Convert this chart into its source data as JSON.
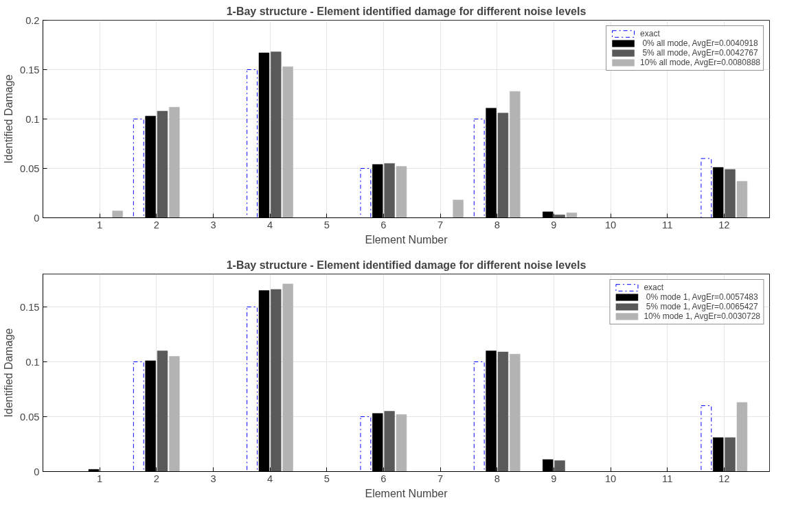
{
  "chart_data": [
    {
      "type": "bar",
      "title": "1-Bay structure - Element identified damage for different noise levels",
      "xlabel": "Element Number",
      "ylabel": "Identified Damage",
      "x": [
        1,
        2,
        3,
        4,
        5,
        6,
        7,
        8,
        9,
        10,
        11,
        12
      ],
      "xlim": [
        0,
        12.8
      ],
      "xticks": [
        1,
        2,
        3,
        4,
        5,
        6,
        7,
        8,
        9,
        10,
        11,
        12
      ],
      "ylim": [
        0,
        0.2
      ],
      "yticks": [
        0,
        0.05,
        0.1,
        0.15,
        0.2
      ],
      "grid": true,
      "legend": "top right",
      "series": [
        {
          "name": "exact",
          "color": "#0000ff",
          "line_style": "dashed",
          "values": [
            0,
            0.1,
            0,
            0.15,
            0,
            0.05,
            0,
            0.1,
            0,
            0,
            0,
            0.06
          ]
        },
        {
          "name": " 0% all mode, AvgEr=0.0040918",
          "color": "#000000",
          "values": [
            0,
            0.103,
            0,
            0.167,
            0,
            0.054,
            0,
            0.111,
            0.006,
            0,
            0,
            0.051
          ]
        },
        {
          "name": " 5% all mode, AvgEr=0.0042767",
          "color": "#595959",
          "values": [
            0,
            0.108,
            0,
            0.168,
            0,
            0.055,
            0,
            0.106,
            0.003,
            0,
            0,
            0.049
          ]
        },
        {
          "name": "10% all mode, AvgEr=0.0080888",
          "color": "#b3b3b3",
          "values": [
            0.007,
            0.112,
            0,
            0.153,
            0,
            0.052,
            0.018,
            0.128,
            0.005,
            0,
            0,
            0.037
          ]
        }
      ]
    },
    {
      "type": "bar",
      "title": "1-Bay structure - Element identified damage for different noise levels",
      "xlabel": "Element Number",
      "ylabel": "Identified Damage",
      "x": [
        1,
        2,
        3,
        4,
        5,
        6,
        7,
        8,
        9,
        10,
        11,
        12
      ],
      "xlim": [
        0,
        12.8
      ],
      "xticks": [
        1,
        2,
        3,
        4,
        5,
        6,
        7,
        8,
        9,
        10,
        11,
        12
      ],
      "ylim": [
        0,
        0.18
      ],
      "yticks": [
        0,
        0.05,
        0.1,
        0.15
      ],
      "grid": true,
      "legend": "top right",
      "series": [
        {
          "name": "exact",
          "color": "#0000ff",
          "line_style": "dashed",
          "values": [
            0,
            0.1,
            0,
            0.15,
            0,
            0.05,
            0,
            0.1,
            0,
            0,
            0,
            0.06
          ]
        },
        {
          "name": " 0% mode 1, AvgEr=0.0057483",
          "color": "#000000",
          "values": [
            0.002,
            0.101,
            0,
            0.165,
            0,
            0.053,
            0,
            0.11,
            0.011,
            0,
            0,
            0.031
          ]
        },
        {
          "name": " 5% mode 1, AvgEr=0.0065427",
          "color": "#595959",
          "values": [
            0,
            0.11,
            0,
            0.166,
            0,
            0.055,
            0,
            0.109,
            0.01,
            0,
            0,
            0.031
          ]
        },
        {
          "name": "10% mode 1, AvgEr=0.0030728",
          "color": "#b3b3b3",
          "values": [
            0,
            0.105,
            0,
            0.171,
            0,
            0.052,
            0,
            0.107,
            0,
            0,
            0,
            0.063
          ]
        }
      ]
    }
  ]
}
